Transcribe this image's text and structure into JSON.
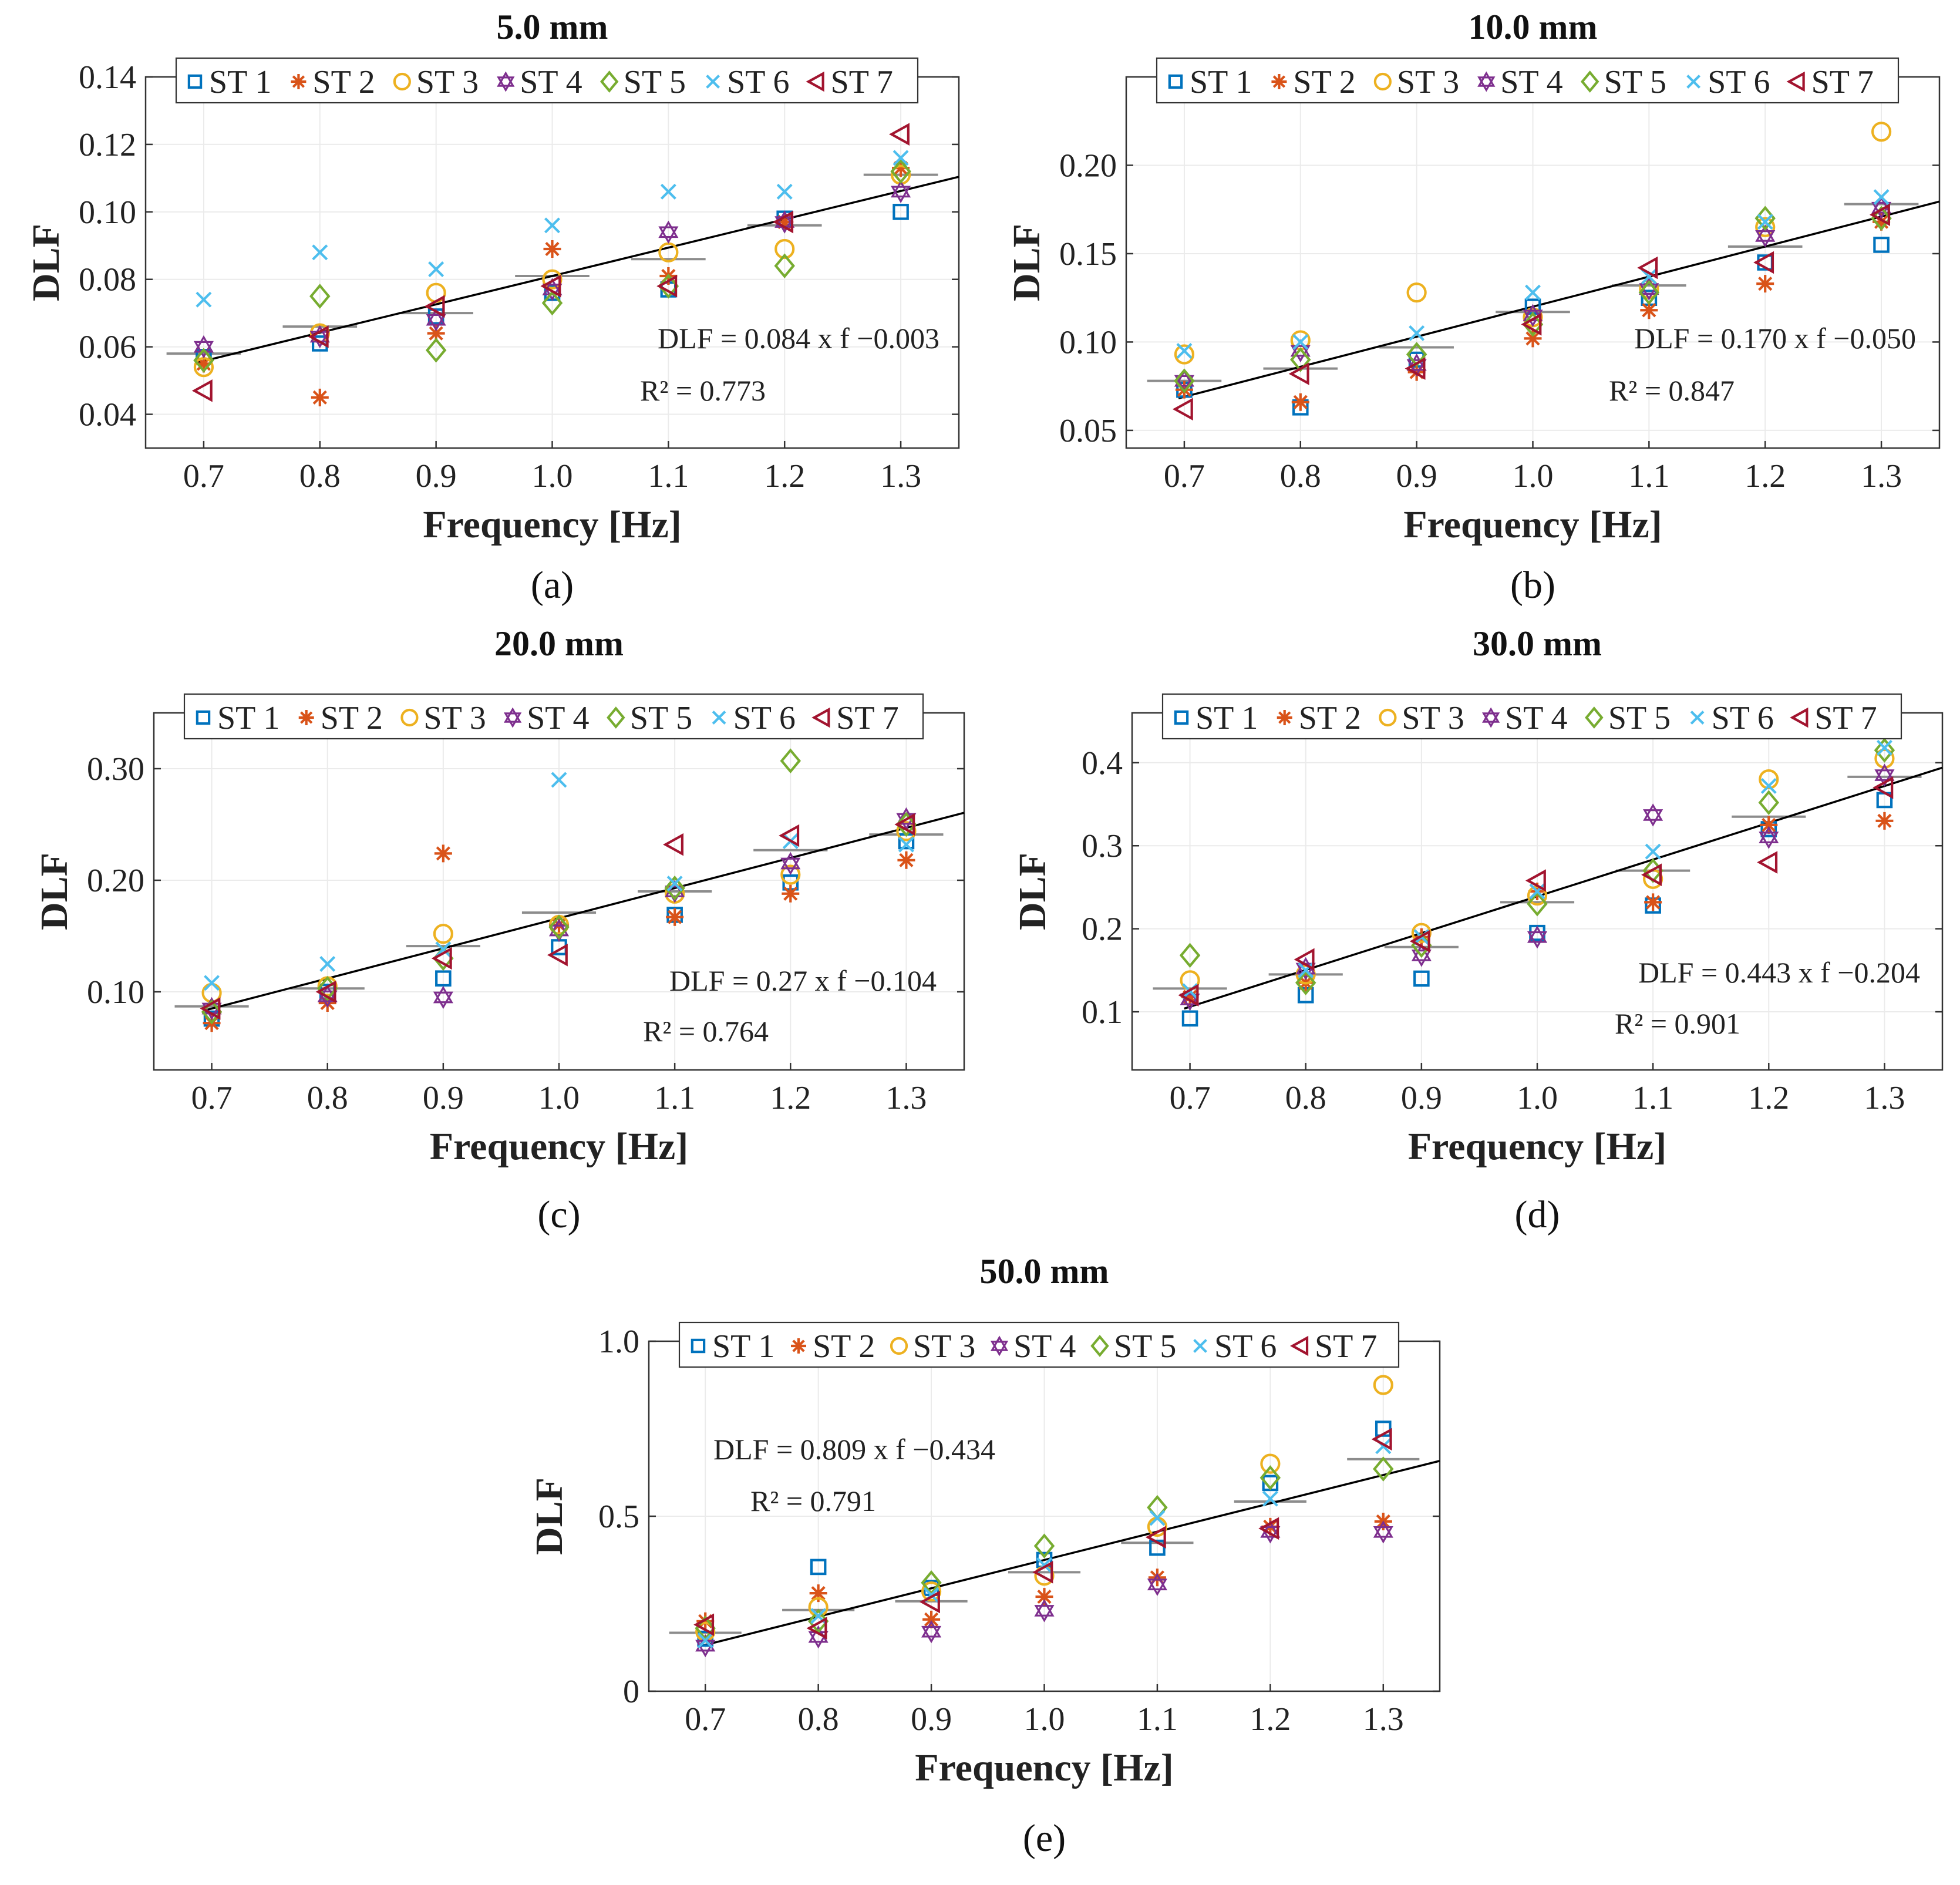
{
  "colors": {
    "ST 1": "#0072BD",
    "ST 2": "#D95319",
    "ST 3": "#EDB120",
    "ST 4": "#7E2F8E",
    "ST 5": "#77AC30",
    "ST 6": "#4DBEEE",
    "ST 7": "#A2142F",
    "fit": "#000000",
    "mean": "#8c8c8c"
  },
  "legend_entries": [
    "ST 1",
    "ST 2",
    "ST 3",
    "ST 4",
    "ST 5",
    "ST 6",
    "ST 7"
  ],
  "chart_data": [
    {
      "id": "a",
      "type": "scatter",
      "panel_label": "(a)",
      "title": "5.0 mm",
      "xlabel": "Frequency [Hz]",
      "ylabel": "DLF",
      "xlim": [
        0.65,
        1.35
      ],
      "ylim": [
        0.03,
        0.14
      ],
      "xticks": [
        0.7,
        0.8,
        0.9,
        1.0,
        1.1,
        1.2,
        1.3
      ],
      "xtick_labels": [
        "0.7",
        "0.8",
        "0.9",
        "1.0",
        "1.1",
        "1.2",
        "1.3"
      ],
      "yticks": [
        0.04,
        0.06,
        0.08,
        0.1,
        0.12,
        0.14
      ],
      "ytick_labels": [
        "0.04",
        "0.06",
        "0.08",
        "0.10",
        "0.12",
        "0.14"
      ],
      "x": [
        0.7,
        0.8,
        0.9,
        1.0,
        1.1,
        1.2,
        1.3
      ],
      "series": [
        {
          "name": "ST 1",
          "marker": "square",
          "values": [
            0.057,
            0.061,
            0.069,
            0.076,
            0.077,
            0.098,
            0.1
          ]
        },
        {
          "name": "ST 2",
          "marker": "star",
          "values": [
            0.055,
            0.045,
            0.064,
            0.089,
            0.081,
            0.097,
            0.113
          ]
        },
        {
          "name": "ST 3",
          "marker": "circle",
          "values": [
            0.054,
            0.064,
            0.076,
            0.08,
            0.088,
            0.089,
            0.111
          ]
        },
        {
          "name": "ST 4",
          "marker": "hexagram",
          "values": [
            0.06,
            0.063,
            0.068,
            0.077,
            0.094,
            0.097,
            0.106
          ]
        },
        {
          "name": "ST 5",
          "marker": "diamond",
          "values": [
            0.056,
            0.075,
            0.059,
            0.073,
            0.078,
            0.084,
            0.112
          ]
        },
        {
          "name": "ST 6",
          "marker": "x",
          "values": [
            0.074,
            0.088,
            0.083,
            0.096,
            0.106,
            0.106,
            0.116
          ]
        },
        {
          "name": "ST 7",
          "marker": "triangle-left",
          "values": [
            0.047,
            0.063,
            0.072,
            0.078,
            0.078,
            0.097,
            0.123
          ]
        }
      ],
      "means": [
        0.058,
        0.066,
        0.07,
        0.081,
        0.086,
        0.096,
        0.111
      ],
      "fit": {
        "slope": 0.084,
        "intercept": -0.003,
        "equation": "DLF = 0.084 x f −0.003",
        "r2": "R² = 0.773"
      }
    },
    {
      "id": "b",
      "type": "scatter",
      "panel_label": "(b)",
      "title": "10.0 mm",
      "xlabel": "Frequency [Hz]",
      "ylabel": "DLF",
      "xlim": [
        0.65,
        1.35
      ],
      "ylim": [
        0.04,
        0.25
      ],
      "xticks": [
        0.7,
        0.8,
        0.9,
        1.0,
        1.1,
        1.2,
        1.3
      ],
      "xtick_labels": [
        "0.7",
        "0.8",
        "0.9",
        "1.0",
        "1.1",
        "1.2",
        "1.3"
      ],
      "yticks": [
        0.05,
        0.1,
        0.15,
        0.2
      ],
      "ytick_labels": [
        "0.05",
        "0.10",
        "0.15",
        "0.20"
      ],
      "x": [
        0.7,
        0.8,
        0.9,
        1.0,
        1.1,
        1.2,
        1.3
      ],
      "series": [
        {
          "name": "ST 1",
          "marker": "square",
          "values": [
            0.073,
            0.063,
            0.09,
            0.12,
            0.125,
            0.145,
            0.155
          ]
        },
        {
          "name": "ST 2",
          "marker": "star",
          "values": [
            0.073,
            0.066,
            0.083,
            0.102,
            0.118,
            0.133,
            0.168
          ]
        },
        {
          "name": "ST 3",
          "marker": "circle",
          "values": [
            0.093,
            0.101,
            0.128,
            0.114,
            0.13,
            0.165,
            0.219
          ]
        },
        {
          "name": "ST 4",
          "marker": "hexagram",
          "values": [
            0.078,
            0.095,
            0.087,
            0.115,
            0.13,
            0.16,
            0.176
          ]
        },
        {
          "name": "ST 5",
          "marker": "diamond",
          "values": [
            0.078,
            0.09,
            0.093,
            0.11,
            0.128,
            0.17,
            0.17
          ]
        },
        {
          "name": "ST 6",
          "marker": "x",
          "values": [
            0.095,
            0.1,
            0.105,
            0.128,
            0.137,
            0.168,
            0.182
          ]
        },
        {
          "name": "ST 7",
          "marker": "triangle-left",
          "values": [
            0.062,
            0.082,
            0.085,
            0.11,
            0.142,
            0.145,
            0.172
          ]
        }
      ],
      "means": [
        0.078,
        0.085,
        0.097,
        0.117,
        0.132,
        0.154,
        0.178
      ],
      "fit": {
        "slope": 0.17,
        "intercept": -0.05,
        "equation": "DLF = 0.170 x f −0.050",
        "r2": "R² = 0.847"
      }
    },
    {
      "id": "c",
      "type": "scatter",
      "panel_label": "(c)",
      "title": "20.0 mm",
      "xlabel": "Frequency [Hz]",
      "ylabel": "DLF",
      "xlim": [
        0.65,
        1.35
      ],
      "ylim": [
        0.03,
        0.35
      ],
      "xticks": [
        0.7,
        0.8,
        0.9,
        1.0,
        1.1,
        1.2,
        1.3
      ],
      "xtick_labels": [
        "0.7",
        "0.8",
        "0.9",
        "1.0",
        "1.1",
        "1.2",
        "1.3"
      ],
      "yticks": [
        0.1,
        0.2,
        0.3
      ],
      "ytick_labels": [
        "0.10",
        "0.20",
        "0.30"
      ],
      "x": [
        0.7,
        0.8,
        0.9,
        1.0,
        1.1,
        1.2,
        1.3
      ],
      "series": [
        {
          "name": "ST 1",
          "marker": "square",
          "values": [
            0.076,
            0.1,
            0.112,
            0.14,
            0.169,
            0.198,
            0.235
          ]
        },
        {
          "name": "ST 2",
          "marker": "star",
          "values": [
            0.072,
            0.09,
            0.224,
            0.16,
            0.167,
            0.188,
            0.218
          ]
        },
        {
          "name": "ST 3",
          "marker": "circle",
          "values": [
            0.099,
            0.105,
            0.152,
            0.16,
            0.188,
            0.205,
            0.244
          ]
        },
        {
          "name": "ST 4",
          "marker": "hexagram",
          "values": [
            0.085,
            0.096,
            0.095,
            0.155,
            0.19,
            0.215,
            0.255
          ]
        },
        {
          "name": "ST 5",
          "marker": "diamond",
          "values": [
            0.082,
            0.103,
            0.13,
            0.158,
            0.193,
            0.307,
            0.25
          ]
        },
        {
          "name": "ST 6",
          "marker": "x",
          "values": [
            0.108,
            0.125,
            0.138,
            0.29,
            0.197,
            0.235,
            0.232
          ]
        },
        {
          "name": "ST 7",
          "marker": "triangle-left",
          "values": [
            0.085,
            0.1,
            0.13,
            0.133,
            0.232,
            0.24,
            0.25
          ]
        }
      ],
      "means": [
        0.087,
        0.103,
        0.141,
        0.171,
        0.19,
        0.227,
        0.241
      ],
      "fit": {
        "slope": 0.27,
        "intercept": -0.104,
        "equation": "DLF = 0.27 x f −0.104",
        "r2": "R² = 0.764"
      }
    },
    {
      "id": "d",
      "type": "scatter",
      "panel_label": "(d)",
      "title": "30.0 mm",
      "xlabel": "Frequency [Hz]",
      "ylabel": "DLF",
      "xlim": [
        0.65,
        1.35
      ],
      "ylim": [
        0.03,
        0.46
      ],
      "xticks": [
        0.7,
        0.8,
        0.9,
        1.0,
        1.1,
        1.2,
        1.3
      ],
      "xtick_labels": [
        "0.7",
        "0.8",
        "0.9",
        "1.0",
        "1.1",
        "1.2",
        "1.3"
      ],
      "yticks": [
        0.1,
        0.2,
        0.3,
        0.4
      ],
      "ytick_labels": [
        "0.1",
        "0.2",
        "0.3",
        "0.4"
      ],
      "x": [
        0.7,
        0.8,
        0.9,
        1.0,
        1.1,
        1.2,
        1.3
      ],
      "series": [
        {
          "name": "ST 1",
          "marker": "square",
          "values": [
            0.092,
            0.12,
            0.14,
            0.195,
            0.228,
            0.32,
            0.355
          ]
        },
        {
          "name": "ST 2",
          "marker": "star",
          "values": [
            0.118,
            0.135,
            0.19,
            0.245,
            0.232,
            0.325,
            0.33
          ]
        },
        {
          "name": "ST 3",
          "marker": "circle",
          "values": [
            0.138,
            0.145,
            0.195,
            0.24,
            0.26,
            0.38,
            0.405
          ]
        },
        {
          "name": "ST 4",
          "marker": "hexagram",
          "values": [
            0.115,
            0.152,
            0.168,
            0.19,
            0.337,
            0.31,
            0.385
          ]
        },
        {
          "name": "ST 5",
          "marker": "diamond",
          "values": [
            0.168,
            0.135,
            0.18,
            0.23,
            0.27,
            0.352,
            0.415
          ]
        },
        {
          "name": "ST 6",
          "marker": "x",
          "values": [
            0.125,
            0.15,
            0.19,
            0.245,
            0.293,
            0.372,
            0.418
          ]
        },
        {
          "name": "ST 7",
          "marker": "triangle-left",
          "values": [
            0.12,
            0.163,
            0.185,
            0.258,
            0.265,
            0.28,
            0.37
          ]
        }
      ],
      "means": [
        0.128,
        0.145,
        0.178,
        0.232,
        0.27,
        0.335,
        0.383
      ],
      "fit": {
        "slope": 0.443,
        "intercept": -0.204,
        "equation": "DLF = 0.443 x f −0.204",
        "r2": "R² = 0.901"
      }
    },
    {
      "id": "e",
      "type": "scatter",
      "panel_label": "(e)",
      "title": "50.0 mm",
      "xlabel": "Frequency [Hz]",
      "ylabel": "DLF",
      "xlim": [
        0.65,
        1.35
      ],
      "ylim": [
        0,
        1.0
      ],
      "xticks": [
        0.7,
        0.8,
        0.9,
        1.0,
        1.1,
        1.2,
        1.3
      ],
      "xtick_labels": [
        "0.7",
        "0.8",
        "0.9",
        "1.0",
        "1.1",
        "1.2",
        "1.3"
      ],
      "yticks": [
        0,
        0.5,
        1.0
      ],
      "ytick_labels": [
        "0",
        "0.5",
        "1.0"
      ],
      "x": [
        0.7,
        0.8,
        0.9,
        1.0,
        1.1,
        1.2,
        1.3
      ],
      "series": [
        {
          "name": "ST 1",
          "marker": "square",
          "values": [
            0.15,
            0.355,
            0.295,
            0.375,
            0.41,
            0.595,
            0.75
          ]
        },
        {
          "name": "ST 2",
          "marker": "star",
          "values": [
            0.2,
            0.28,
            0.205,
            0.27,
            0.325,
            0.47,
            0.485
          ]
        },
        {
          "name": "ST 3",
          "marker": "circle",
          "values": [
            0.17,
            0.24,
            0.285,
            0.33,
            0.47,
            0.65,
            0.875
          ]
        },
        {
          "name": "ST 4",
          "marker": "hexagram",
          "values": [
            0.13,
            0.155,
            0.17,
            0.23,
            0.305,
            0.455,
            0.455
          ]
        },
        {
          "name": "ST 5",
          "marker": "diamond",
          "values": [
            0.18,
            0.2,
            0.31,
            0.415,
            0.525,
            0.61,
            0.635
          ]
        },
        {
          "name": "ST 6",
          "marker": "x",
          "values": [
            0.145,
            0.215,
            0.275,
            0.36,
            0.495,
            0.55,
            0.7
          ]
        },
        {
          "name": "ST 7",
          "marker": "triangle-left",
          "values": [
            0.19,
            0.18,
            0.255,
            0.34,
            0.44,
            0.465,
            0.72
          ]
        }
      ],
      "means": [
        0.167,
        0.232,
        0.257,
        0.34,
        0.424,
        0.542,
        0.663
      ],
      "fit": {
        "slope": 0.809,
        "intercept": -0.434,
        "equation": "DLF = 0.809 x f −0.434",
        "r2": "R² = 0.791"
      }
    }
  ]
}
